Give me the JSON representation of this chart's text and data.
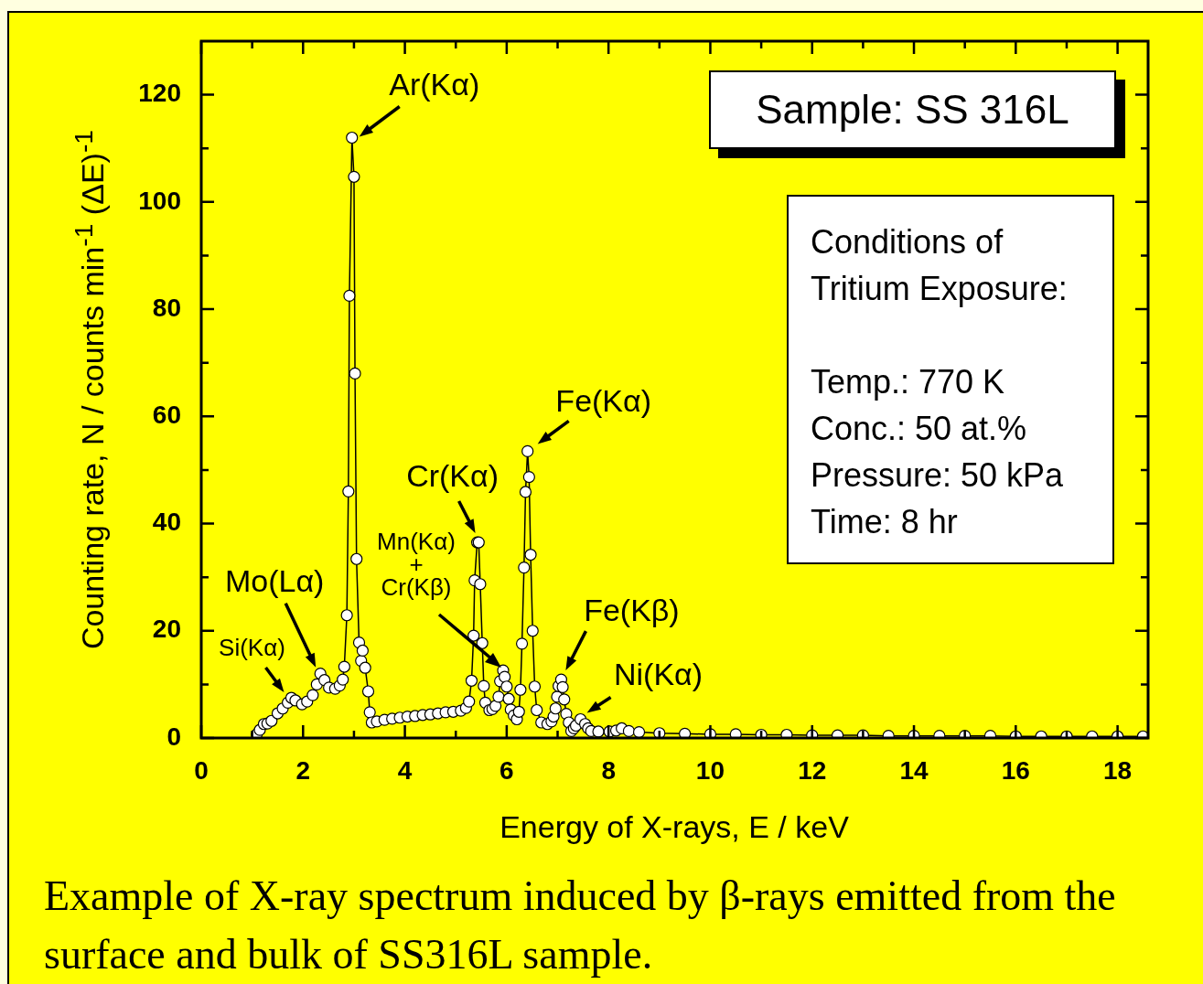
{
  "chart_data": {
    "type": "line",
    "xlabel": "Energy of X-rays, E / keV",
    "ylabel": "Counting rate, N / counts min$^{-1}$ (ΔE)$^{-1}$",
    "xlim": [
      0,
      18.6
    ],
    "ylim": [
      0,
      130
    ],
    "xticks": [
      0,
      {
        "value": 1,
        "label": null
      },
      2,
      {
        "value": 3,
        "label": null
      },
      4,
      {
        "value": 5,
        "label": null
      },
      6,
      {
        "value": 7,
        "label": null
      },
      8,
      {
        "value": 9,
        "label": null
      },
      10,
      {
        "value": 11,
        "label": null
      },
      12,
      {
        "value": 13,
        "label": null
      },
      14,
      {
        "value": 15,
        "label": null
      },
      16,
      {
        "value": 17,
        "label": null
      },
      18
    ],
    "yticks": [
      0,
      {
        "value": 10,
        "label": null
      },
      20,
      {
        "value": 30,
        "label": null
      },
      40,
      {
        "value": 50,
        "label": null
      },
      60,
      {
        "value": 70,
        "label": null
      },
      80,
      {
        "value": 90,
        "label": null
      },
      100,
      {
        "value": 110,
        "label": null
      },
      120
    ],
    "grid": false,
    "legend": false,
    "marker": "circle",
    "line_style": "solid",
    "series": [
      {
        "color": "#000000",
        "x": [
          1.09,
          1.15,
          1.23,
          1.3,
          1.38,
          1.5,
          1.6,
          1.7,
          1.77,
          1.85,
          1.98,
          2.08,
          2.19,
          2.27,
          2.34,
          2.42,
          2.51,
          2.63,
          2.72,
          2.78,
          2.81,
          2.86,
          2.89,
          2.91,
          2.96,
          3.0,
          3.02,
          3.05,
          3.1,
          3.14,
          3.17,
          3.22,
          3.28,
          3.31,
          3.35,
          3.45,
          3.6,
          3.75,
          3.9,
          4.05,
          4.2,
          4.35,
          4.5,
          4.65,
          4.8,
          4.95,
          5.1,
          5.2,
          5.26,
          5.31,
          5.35,
          5.37,
          5.42,
          5.45,
          5.48,
          5.52,
          5.55,
          5.58,
          5.66,
          5.72,
          5.78,
          5.84,
          5.87,
          5.93,
          5.96,
          6.0,
          6.04,
          6.08,
          6.14,
          6.2,
          6.24,
          6.27,
          6.3,
          6.34,
          6.37,
          6.41,
          6.44,
          6.47,
          6.51,
          6.55,
          6.59,
          6.68,
          6.8,
          6.88,
          6.92,
          6.96,
          6.99,
          7.02,
          7.07,
          7.1,
          7.13,
          7.17,
          7.22,
          7.27,
          7.32,
          7.36,
          7.45,
          7.54,
          7.6,
          7.66,
          7.8,
          8.02,
          8.15,
          8.26,
          8.4,
          8.6,
          9.0,
          9.5,
          10.0,
          10.5,
          11.0,
          11.5,
          12.0,
          12.5,
          13.0,
          13.5,
          14.0,
          14.5,
          15.0,
          15.5,
          16.0,
          16.5,
          17.0,
          17.5,
          18.0,
          18.5
        ],
        "values": [
          0.7,
          1.5,
          2.6,
          2.7,
          3.2,
          4.6,
          5.5,
          6.6,
          7.5,
          7.0,
          6.3,
          6.8,
          8.0,
          10.0,
          12.0,
          10.8,
          9.4,
          9.2,
          9.8,
          10.9,
          13.3,
          22.9,
          46,
          82.5,
          112,
          104.7,
          68,
          33.4,
          17.8,
          14.4,
          16.3,
          13.1,
          8.7,
          4.8,
          2.9,
          3.1,
          3.4,
          3.6,
          3.8,
          4.0,
          4.1,
          4.3,
          4.4,
          4.6,
          4.8,
          4.9,
          5.1,
          5.6,
          6.8,
          10.7,
          19.1,
          29.4,
          36.5,
          36.5,
          28.7,
          17.7,
          9.7,
          6.6,
          5.2,
          5.4,
          6.0,
          7.7,
          10.6,
          12.6,
          11.4,
          9.6,
          7.3,
          5.3,
          4.2,
          3.5,
          4.9,
          9.0,
          17.6,
          31.8,
          45.9,
          53.5,
          48.7,
          34.2,
          20.0,
          9.6,
          5.2,
          2.9,
          2.6,
          3.1,
          4.0,
          5.5,
          7.7,
          9.7,
          10.9,
          9.5,
          7.2,
          4.5,
          2.9,
          1.3,
          1.8,
          2.3,
          3.5,
          2.6,
          1.8,
          1.3,
          1.2,
          1.2,
          1.4,
          1.8,
          1.3,
          1.1,
          0.9,
          0.8,
          0.7,
          0.7,
          0.6,
          0.6,
          0.5,
          0.5,
          0.5,
          0.4,
          0.4,
          0.4,
          0.4,
          0.4,
          0.3,
          0.3,
          0.3,
          0.3,
          0.3,
          0.3
        ]
      }
    ],
    "annotations": [
      {
        "text": "Ar(Kα)",
        "x": 2.96,
        "y": 112
      },
      {
        "text": "Fe(Kα)",
        "x": 6.41,
        "y": 53.5
      },
      {
        "text": "Cr(Kα)",
        "x": 5.42,
        "y": 36.5
      },
      "Mn(Kα) + Cr(Kβ)",
      {
        "text": "Mo(Lα)",
        "x": 2.34,
        "y": 12.0
      },
      {
        "text": "Si(Kα)",
        "x": 1.77,
        "y": 7.5
      },
      {
        "text": "Fe(Kβ)",
        "x": 7.07,
        "y": 10.9
      },
      {
        "text": "Ni(Kα)",
        "x": 7.45,
        "y": 3.5
      },
      "Sample: SS 316L",
      "Conditions of Tritium Exposure:\n\nTemp.: 770 K\nConc.: 50 at.%\nPressure: 50 kPa\nTime: 8 hr",
      "Example of X-ray spectrum induced by β-rays emitted from the surface and bulk of SS316L sample."
    ]
  }
}
